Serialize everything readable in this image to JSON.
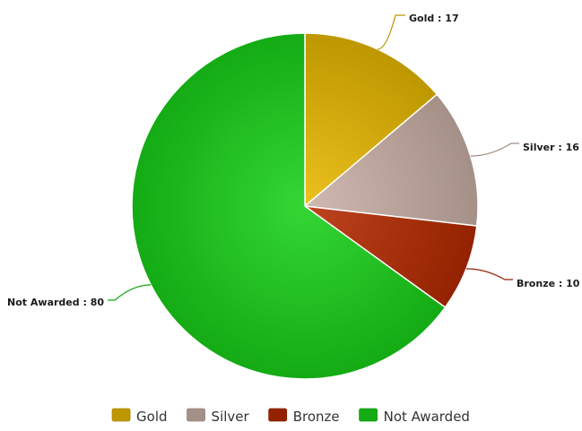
{
  "chart_data": {
    "type": "pie",
    "title": "",
    "label_separator": " : ",
    "slices": [
      {
        "label": "Gold",
        "value": 17,
        "color": "#E8B800"
      },
      {
        "label": "Silver",
        "value": 16,
        "color": "#C9AFA6"
      },
      {
        "label": "Bronze",
        "value": 10,
        "color": "#B52A00"
      },
      {
        "label": "Not Awarded",
        "value": 80,
        "color": "#18D018"
      }
    ],
    "legend": {
      "position": "bottom",
      "items": [
        "Gold",
        "Silver",
        "Bronze",
        "Not Awarded"
      ]
    }
  }
}
